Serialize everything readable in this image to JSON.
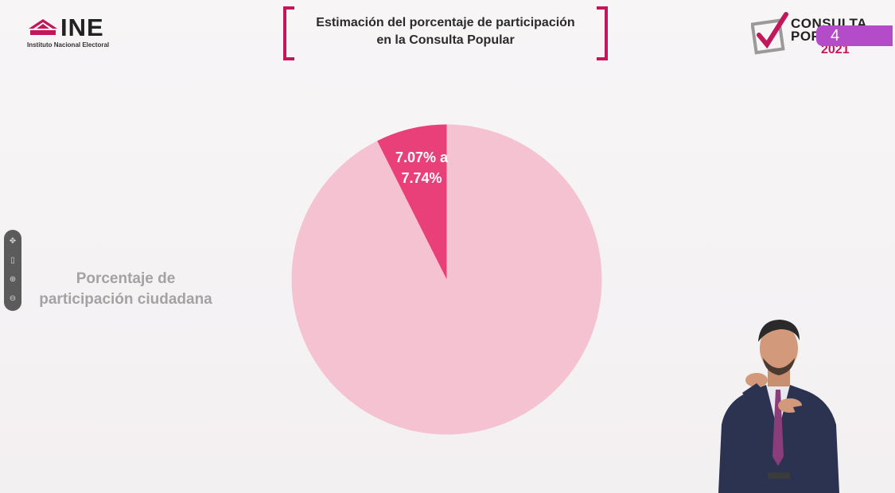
{
  "header": {
    "ine_logo_text": "INE",
    "ine_subtitle": "Instituto Nacional Electoral",
    "title_line1": "Estimación del porcentaje de participación",
    "title_line2": "en la Consulta Popular",
    "consulta_word1": "CONSULTA",
    "consulta_word2": "POPULAR",
    "consulta_year": "2021",
    "channel_number": "4"
  },
  "side_label": {
    "line1": "Porcentaje de",
    "line2": "participación ciudadana"
  },
  "chart_data": {
    "type": "pie",
    "slices": [
      {
        "label": "7.07% a 7.74%",
        "value_range": [
          7.07,
          7.74
        ],
        "value": 7.4,
        "color": "#e9407a"
      },
      {
        "label": "",
        "value": 92.6,
        "color": "#f4c2d1"
      }
    ],
    "slice_label_line1": "7.07% a",
    "slice_label_line2": "7.74%"
  },
  "colors": {
    "brand_magenta": "#c2185b",
    "pie_main": "#f4c2d1",
    "pie_highlight": "#e9407a",
    "channel_pill": "#b44bc8"
  },
  "icons": [
    "ine-logo-icon",
    "consulta-check-icon",
    "pan-icon",
    "trash-icon",
    "zoom-in-icon",
    "zoom-out-icon"
  ]
}
